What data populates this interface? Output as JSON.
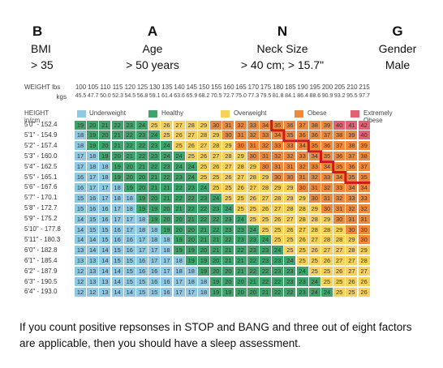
{
  "header": {
    "columns": [
      {
        "letter": "B",
        "label": "BMI",
        "value": "> 35"
      },
      {
        "letter": "A",
        "label": "Age",
        "value": "> 50 years"
      },
      {
        "letter": "N",
        "label": "Neck Size",
        "value": "> 40 cm; > 15.7\""
      },
      {
        "letter": "G",
        "label": "Gender",
        "value": "Male"
      }
    ]
  },
  "chart": {
    "weight_label": "WEIGHT  lbs",
    "kgs_label": "kgs",
    "lbs": [
      "100",
      "105",
      "110",
      "115",
      "120",
      "125",
      "130",
      "135",
      "140",
      "145",
      "150",
      "155",
      "160",
      "165",
      "170",
      "175",
      "180",
      "185",
      "190",
      "195",
      "200",
      "205",
      "210",
      "215"
    ],
    "kgs": [
      "45.5",
      "47.7",
      "50.0",
      "52.3",
      "54.5",
      "56.8",
      "59.1",
      "61.4",
      "63.6",
      "65.9",
      "68.2",
      "70.5",
      "72.7",
      "75.0",
      "77.3",
      "79.5",
      "81.8",
      "84.1",
      "86.4",
      "88.6",
      "90.9",
      "93.2",
      "95.5",
      "97.7"
    ],
    "height_label": "HEIGHT  in/cm",
    "legend": [
      {
        "label": "Underweight",
        "color": "#8ec9e3"
      },
      {
        "label": "Healthy",
        "color": "#3da46b"
      },
      {
        "label": "Overweight",
        "color": "#f6d25b"
      },
      {
        "label": "Obese",
        "color": "#ef8a3c"
      },
      {
        "label": "Extremely Obese",
        "color": "#e06273"
      }
    ],
    "heights": [
      {
        "in": "5'0\"",
        "cm": "152.4",
        "bmi": [
          19,
          20,
          21,
          22,
          23,
          24,
          25,
          26,
          27,
          28,
          29,
          30,
          31,
          32,
          33,
          34,
          35,
          36,
          37,
          38,
          39,
          40,
          41,
          42
        ]
      },
      {
        "in": "5'1\"",
        "cm": "154.9",
        "bmi": [
          18,
          19,
          20,
          21,
          22,
          23,
          24,
          25,
          26,
          27,
          28,
          29,
          30,
          31,
          32,
          33,
          34,
          35,
          36,
          36,
          37,
          38,
          39,
          40
        ]
      },
      {
        "in": "5'2\"",
        "cm": "157.4",
        "bmi": [
          18,
          19,
          20,
          21,
          22,
          22,
          23,
          24,
          25,
          26,
          27,
          28,
          29,
          30,
          31,
          32,
          33,
          33,
          34,
          35,
          36,
          37,
          38,
          39
        ]
      },
      {
        "in": "5'3\"",
        "cm": "160.0",
        "bmi": [
          17,
          18,
          19,
          20,
          21,
          22,
          23,
          24,
          24,
          25,
          26,
          27,
          28,
          29,
          30,
          31,
          32,
          32,
          33,
          34,
          35,
          36,
          37,
          38
        ]
      },
      {
        "in": "5'4\"",
        "cm": "162.5",
        "bmi": [
          17,
          18,
          18,
          19,
          20,
          21,
          22,
          23,
          24,
          24,
          25,
          26,
          27,
          28,
          29,
          30,
          31,
          31,
          32,
          33,
          34,
          35,
          36,
          37
        ]
      },
      {
        "in": "5'5\"",
        "cm": "165.1",
        "bmi": [
          16,
          17,
          18,
          19,
          20,
          20,
          21,
          22,
          23,
          24,
          25,
          25,
          26,
          27,
          28,
          29,
          30,
          30,
          31,
          32,
          33,
          34,
          35,
          35
        ]
      },
      {
        "in": "5'6\"",
        "cm": "167.6",
        "bmi": [
          16,
          17,
          17,
          18,
          19,
          20,
          21,
          21,
          22,
          23,
          24,
          25,
          25,
          26,
          27,
          28,
          29,
          29,
          30,
          31,
          32,
          33,
          34,
          34
        ]
      },
      {
        "in": "5'7\"",
        "cm": "170.1",
        "bmi": [
          15,
          16,
          17,
          18,
          18,
          19,
          20,
          21,
          22,
          22,
          23,
          24,
          25,
          25,
          26,
          27,
          28,
          29,
          29,
          30,
          31,
          32,
          33,
          33
        ]
      },
      {
        "in": "5'8\"",
        "cm": "172.7",
        "bmi": [
          15,
          16,
          16,
          17,
          18,
          19,
          19,
          20,
          21,
          22,
          22,
          23,
          24,
          25,
          25,
          26,
          27,
          28,
          28,
          29,
          30,
          31,
          32,
          32
        ]
      },
      {
        "in": "5'9\"",
        "cm": "175.2",
        "bmi": [
          14,
          15,
          16,
          17,
          17,
          18,
          19,
          20,
          20,
          21,
          22,
          22,
          23,
          24,
          25,
          25,
          26,
          27,
          28,
          28,
          29,
          30,
          31,
          31
        ]
      },
      {
        "in": "5'10\"",
        "cm": "177.8",
        "bmi": [
          14,
          15,
          15,
          16,
          17,
          18,
          18,
          19,
          20,
          20,
          21,
          22,
          23,
          23,
          24,
          25,
          25,
          26,
          27,
          28,
          28,
          29,
          30,
          30
        ]
      },
      {
        "in": "5'11\"",
        "cm": "180.3",
        "bmi": [
          14,
          14,
          15,
          16,
          16,
          17,
          18,
          18,
          19,
          20,
          21,
          21,
          22,
          23,
          23,
          24,
          25,
          25,
          26,
          27,
          28,
          28,
          29,
          30
        ]
      },
      {
        "in": "6'0\"",
        "cm": "182.8",
        "bmi": [
          13,
          14,
          14,
          15,
          16,
          17,
          17,
          18,
          19,
          19,
          20,
          21,
          21,
          22,
          23,
          23,
          24,
          25,
          25,
          26,
          27,
          27,
          28,
          29
        ]
      },
      {
        "in": "6'1\"",
        "cm": "185.4",
        "bmi": [
          13,
          13,
          14,
          15,
          15,
          16,
          17,
          17,
          18,
          19,
          19,
          20,
          21,
          21,
          22,
          23,
          23,
          24,
          25,
          25,
          26,
          27,
          27,
          28
        ]
      },
      {
        "in": "6'2\"",
        "cm": "187.9",
        "bmi": [
          12,
          13,
          14,
          14,
          15,
          16,
          16,
          17,
          18,
          18,
          19,
          20,
          20,
          21,
          22,
          22,
          23,
          23,
          24,
          25,
          25,
          26,
          27,
          27
        ]
      },
      {
        "in": "6'3\"",
        "cm": "190.5",
        "bmi": [
          12,
          13,
          13,
          14,
          15,
          15,
          16,
          16,
          17,
          18,
          18,
          19,
          20,
          20,
          21,
          22,
          22,
          23,
          23,
          24,
          25,
          25,
          26,
          26
        ]
      },
      {
        "in": "6'4\"",
        "cm": "193.0",
        "bmi": [
          12,
          12,
          13,
          14,
          14,
          15,
          15,
          16,
          17,
          17,
          18,
          19,
          19,
          20,
          20,
          21,
          22,
          22,
          23,
          24,
          24,
          25,
          25,
          26
        ]
      }
    ],
    "threshold_color": "#cc1a1a"
  },
  "footer": {
    "line1": "If you count positive repsonses in STOP and BANG and three out of eight factors",
    "line2": "are applicable, then you should have a sleep assessment."
  }
}
